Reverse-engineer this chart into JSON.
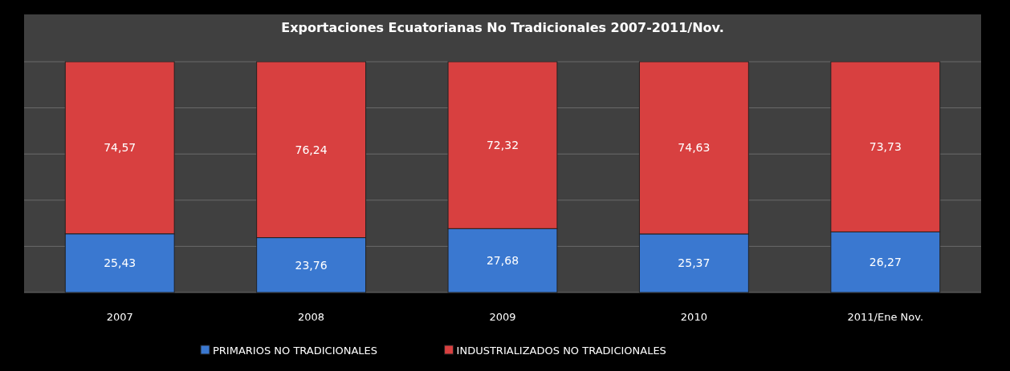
{
  "chart_data": {
    "type": "bar",
    "title": "Exportaciones Ecuatorianas No Tradicionales 2007-2011/Nov.",
    "categories": [
      "2007",
      "2008",
      "2009",
      "2010",
      "2011/Ene Nov."
    ],
    "stacked": true,
    "series": [
      {
        "name": "PRIMARIOS NO TRADICIONALES",
        "color": "#3a78d0",
        "values": [
          25.43,
          23.76,
          27.68,
          25.37,
          26.27
        ],
        "value_labels": [
          "25,43",
          "23,76",
          "27,68",
          "25,37",
          "26,27"
        ]
      },
      {
        "name": "INDUSTRIALIZADOS NO TRADICIONALES",
        "color": "#d84040",
        "values": [
          74.57,
          76.24,
          72.32,
          74.63,
          73.73
        ],
        "value_labels": [
          "74,57",
          "76,24",
          "72,32",
          "74,63",
          "73,73"
        ]
      }
    ],
    "tick_labels": "x",
    "grid": "y",
    "legend": "bottom"
  }
}
